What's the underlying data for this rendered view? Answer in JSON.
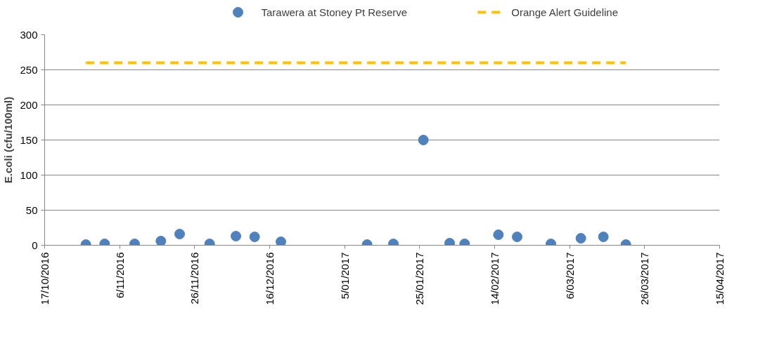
{
  "chart_data": {
    "type": "scatter",
    "ylabel": "E.coli (cfu/100ml)",
    "x": [
      "2016-10-28",
      "2016-11-02",
      "2016-11-10",
      "2016-11-17",
      "2016-11-22",
      "2016-11-30",
      "2016-12-07",
      "2016-12-12",
      "2016-12-19",
      "2017-01-11",
      "2017-01-18",
      "2017-01-26",
      "2017-02-02",
      "2017-02-06",
      "2017-02-15",
      "2017-02-20",
      "2017-03-01",
      "2017-03-09",
      "2017-03-15",
      "2017-03-21"
    ],
    "series": [
      {
        "name": "Tarawera at Stoney Pt Reserve",
        "marker": "circle",
        "color": "#4f81bd",
        "values": [
          1,
          2,
          2,
          6,
          16,
          2,
          13,
          12,
          5,
          1,
          2,
          150,
          3,
          2,
          15,
          12,
          2,
          10,
          12,
          1
        ]
      },
      {
        "name": "Orange Alert Guideline",
        "type": "line",
        "color": "#ffc000",
        "line_style": "dashed",
        "x": [
          "2016-10-28",
          "2017-03-21"
        ],
        "values": [
          260,
          260
        ]
      }
    ],
    "xlim": [
      "2016-10-17",
      "2017-04-15"
    ],
    "xticks": [
      {
        "value": "2016-10-17",
        "label": "17/10/2016"
      },
      {
        "value": "2016-11-06",
        "label": "6/11/2016"
      },
      {
        "value": "2016-11-26",
        "label": "26/11/2016"
      },
      {
        "value": "2016-12-16",
        "label": "16/12/2016"
      },
      {
        "value": "2017-01-05",
        "label": "5/01/2017"
      },
      {
        "value": "2017-01-25",
        "label": "25/01/2017"
      },
      {
        "value": "2017-02-14",
        "label": "14/02/2017"
      },
      {
        "value": "2017-03-06",
        "label": "6/03/2017"
      },
      {
        "value": "2017-03-26",
        "label": "26/03/2017"
      },
      {
        "value": "2017-04-15",
        "label": "15/04/2017"
      }
    ],
    "ylim": [
      0,
      300
    ],
    "yticks": [
      0,
      50,
      100,
      150,
      200,
      250,
      300
    ],
    "grid": "y",
    "legend": "top"
  }
}
